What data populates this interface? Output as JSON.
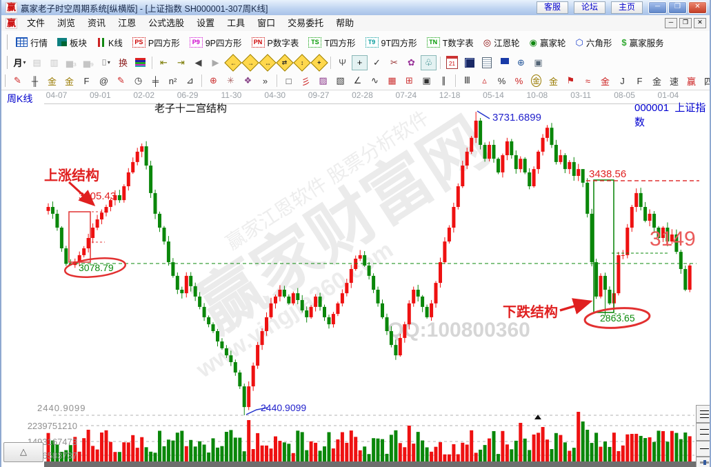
{
  "window": {
    "title": "赢家老子时空周期系统[纵横版] - [上证指数 SH000001-307周K线]",
    "title_buttons": [
      {
        "label": "客服",
        "name": "customer-service-button"
      },
      {
        "label": "论坛",
        "name": "forum-button"
      },
      {
        "label": "主页",
        "name": "homepage-button"
      }
    ]
  },
  "menu": {
    "items": [
      {
        "label": "文件",
        "name": "menu-file"
      },
      {
        "label": "浏览",
        "name": "menu-browse"
      },
      {
        "label": "资讯",
        "name": "menu-news"
      },
      {
        "label": "江恩",
        "name": "menu-gann"
      },
      {
        "label": "公式选股",
        "name": "menu-formula-picker"
      },
      {
        "label": "设置",
        "name": "menu-settings"
      },
      {
        "label": "工具",
        "name": "menu-tools"
      },
      {
        "label": "窗口",
        "name": "menu-window"
      },
      {
        "label": "交易委托",
        "name": "menu-trade"
      },
      {
        "label": "帮助",
        "name": "menu-help"
      }
    ]
  },
  "toolbar_main": [
    {
      "label": "行情",
      "name": "quotes-button",
      "icon": "grid"
    },
    {
      "label": "板块",
      "name": "blocks-button",
      "icon": "blocks"
    },
    {
      "label": "K线",
      "name": "kline-button",
      "icon": "kline"
    },
    {
      "label": "P四方形",
      "name": "p-square-button",
      "icon": "badge",
      "badge": "PS",
      "color": "#cc0000"
    },
    {
      "label": "9P四方形",
      "name": "nine-p-square-button",
      "icon": "badge",
      "badge": "P9",
      "color": "#cc00cc"
    },
    {
      "label": "P数字表",
      "name": "p-number-table-button",
      "icon": "badge",
      "badge": "PN",
      "color": "#cc0000"
    },
    {
      "label": "T四方形",
      "name": "t-square-button",
      "icon": "badge",
      "badge": "TS",
      "color": "#009900"
    },
    {
      "label": "9T四方形",
      "name": "nine-t-square-button",
      "icon": "badge",
      "badge": "T9",
      "color": "#009999"
    },
    {
      "label": "T数字表",
      "name": "t-number-table-button",
      "icon": "badge",
      "badge": "TN",
      "color": "#009900"
    },
    {
      "label": "江恩轮",
      "name": "gann-wheel-button",
      "icon": "glyph",
      "glyph": "◎",
      "color": "#880000"
    },
    {
      "label": "赢家轮",
      "name": "winner-wheel-button",
      "icon": "glyph",
      "glyph": "◉",
      "color": "#118811"
    },
    {
      "label": "六角形",
      "name": "hexagon-button",
      "icon": "glyph",
      "glyph": "⬡",
      "color": "#2244cc"
    },
    {
      "label": "赢家服务",
      "name": "winner-service-button",
      "icon": "glyph",
      "glyph": "$",
      "color": "#33aa33"
    }
  ],
  "toolbar_tools": [
    {
      "name": "period-month-dropdown",
      "glyph": "月",
      "color": "#111",
      "dropdown": true,
      "bold": true
    },
    {
      "name": "pattern-view-icon",
      "glyph": "▤",
      "color": "#999",
      "disabled": true
    },
    {
      "name": "report-view-icon",
      "glyph": "▥",
      "color": "#999",
      "disabled": true
    },
    {
      "name": "chart3-view-icon",
      "glyph": "▅₃",
      "color": "#999",
      "disabled": true
    },
    {
      "name": "chart9-view-icon",
      "glyph": "▅₉",
      "color": "#999",
      "disabled": true
    },
    {
      "name": "candle-style-dropdown",
      "glyph": "⌷",
      "color": "#555",
      "dropdown": true
    },
    {
      "name": "exchange-icon",
      "glyph": "换",
      "color": "#8b1a1a"
    },
    {
      "name": "histogram-icon",
      "type": "hist"
    },
    {
      "type": "sep"
    },
    {
      "name": "first-bar-button",
      "glyph": "⇤",
      "color": "#7a7a00"
    },
    {
      "name": "last-bar-button",
      "glyph": "⇥",
      "color": "#7a7a00"
    },
    {
      "name": "prev-bar-button",
      "glyph": "◀",
      "color": "#444"
    },
    {
      "name": "next-bar-button",
      "glyph": "▶",
      "color": "#aaa"
    },
    {
      "name": "pan-left-button",
      "type": "diamond",
      "glyph": "←"
    },
    {
      "name": "pan-right-button",
      "type": "diamond",
      "glyph": "→"
    },
    {
      "name": "expand-horizontal-button",
      "type": "diamond",
      "glyph": "↔"
    },
    {
      "name": "compress-horizontal-button",
      "type": "diamond",
      "glyph": "⇄"
    },
    {
      "name": "expand-vertical-button",
      "type": "diamond",
      "glyph": "↕"
    },
    {
      "name": "expand-all-button",
      "type": "diamond",
      "glyph": "+"
    },
    {
      "type": "sep"
    },
    {
      "name": "hand-tool-button",
      "glyph": "Ψ",
      "color": "#555"
    },
    {
      "name": "crosshair-tool-button",
      "glyph": "+",
      "color": "#111",
      "pressed": true
    },
    {
      "name": "line-node-tool-button",
      "glyph": "✓",
      "color": "#333"
    },
    {
      "name": "scissors-tool-button",
      "glyph": "✂",
      "color": "#993333"
    },
    {
      "name": "flower-tool-button",
      "glyph": "✿",
      "color": "#993399"
    },
    {
      "name": "brain-tool-button",
      "glyph": "♧",
      "color": "#117777",
      "pressed": true
    },
    {
      "type": "sep"
    },
    {
      "name": "calendar-button",
      "type": "cal",
      "glyph": "21"
    },
    {
      "name": "calculator-button",
      "type": "calc"
    },
    {
      "name": "notepad-button",
      "type": "note"
    },
    {
      "name": "save-button",
      "type": "save"
    },
    {
      "name": "network-button",
      "glyph": "⊕",
      "color": "#225599"
    },
    {
      "name": "workstation-button",
      "glyph": "▣",
      "color": "#556677"
    }
  ],
  "toolbar_draw": [
    {
      "name": "red-brush-icon",
      "glyph": "✎",
      "color": "#cc2222"
    },
    {
      "name": "grid-hash-icon",
      "glyph": "╫",
      "color": "#333"
    },
    {
      "name": "gann-grid-gold-icon",
      "glyph": "金",
      "color": "#997a00"
    },
    {
      "name": "gann-grid-gold2-icon",
      "glyph": "金",
      "color": "#997a00"
    },
    {
      "name": "fibonacci-grid-icon",
      "glyph": "F",
      "color": "#333"
    },
    {
      "name": "spiral-grid-icon",
      "glyph": "@",
      "color": "#333"
    },
    {
      "name": "red-pencil-icon",
      "glyph": "✎",
      "color": "#cc2222"
    },
    {
      "name": "time-cycle-icon",
      "glyph": "◷",
      "color": "#333"
    },
    {
      "name": "hash-lines-icon",
      "glyph": "╪",
      "color": "#333"
    },
    {
      "name": "n-square-icon",
      "glyph": "n²",
      "color": "#333"
    },
    {
      "name": "ruler-triangle-icon",
      "glyph": "⊿",
      "color": "#333"
    },
    {
      "type": "sep"
    },
    {
      "name": "compass-target-icon",
      "glyph": "⊕",
      "color": "#cc3333"
    },
    {
      "name": "starburst-icon",
      "glyph": "✳",
      "color": "#aa6666"
    },
    {
      "name": "starburst-square-icon",
      "glyph": "❖",
      "color": "#884488"
    },
    {
      "name": "more-tools-button",
      "glyph": "»",
      "color": "#333"
    },
    {
      "type": "sep"
    },
    {
      "name": "rect-select-icon",
      "glyph": "□",
      "color": "#333"
    },
    {
      "name": "gann-fan-icon",
      "glyph": "彡",
      "color": "#cc2222"
    },
    {
      "name": "fan-box-icon",
      "glyph": "▨",
      "color": "#883388"
    },
    {
      "name": "fan-box2-icon",
      "glyph": "▧",
      "color": "#333"
    },
    {
      "name": "angle-lines-icon",
      "glyph": "∠",
      "color": "#333"
    },
    {
      "name": "wave-tool-icon",
      "glyph": "∿",
      "color": "#333"
    },
    {
      "name": "grid-table-icon",
      "glyph": "▦",
      "color": "#cc3333"
    },
    {
      "name": "grid-dots-icon",
      "glyph": "⊞",
      "color": "#cc3333"
    },
    {
      "name": "grid-box-icon",
      "glyph": "▣",
      "color": "#333"
    },
    {
      "name": "parallel-lines-icon",
      "glyph": "∥",
      "color": "#333"
    },
    {
      "type": "sep"
    },
    {
      "name": "bars-lines-icon",
      "glyph": "Ⅲ",
      "color": "#333"
    },
    {
      "name": "triangle-percent-icon",
      "glyph": "▵",
      "color": "#cc3333"
    },
    {
      "name": "percent-icon",
      "glyph": "%",
      "color": "#333"
    },
    {
      "name": "percent-lines-icon",
      "glyph": "%",
      "color": "#cc2222"
    },
    {
      "name": "gold-circle-icon",
      "glyph": "金",
      "color": "#997a00",
      "circle": true
    },
    {
      "name": "gold-lines-icon",
      "glyph": "金",
      "color": "#997a00"
    },
    {
      "name": "flag-pen-icon",
      "glyph": "⚑",
      "color": "#cc2222"
    },
    {
      "name": "wave-lines-icon",
      "glyph": "≈",
      "color": "#cc2222"
    },
    {
      "name": "gold-red-icon",
      "glyph": "金",
      "color": "#cc2222"
    },
    {
      "name": "j-line-icon",
      "glyph": "J",
      "color": "#333"
    },
    {
      "name": "f-line-icon",
      "glyph": "F",
      "color": "#333"
    },
    {
      "name": "gold-angle-icon",
      "glyph": "金",
      "color": "#333"
    },
    {
      "name": "speed-line-icon",
      "glyph": "速",
      "color": "#333"
    },
    {
      "name": "winner-line-icon",
      "glyph": "赢",
      "color": "#cc2222"
    },
    {
      "name": "si-line-icon",
      "glyph": "四",
      "color": "#333"
    },
    {
      "type": "sep"
    },
    {
      "name": "grid-yellow-icon",
      "glyph": "⊞",
      "color": "#2244cc",
      "bg": "#ffe87a"
    },
    {
      "name": "mini-chart-icon",
      "glyph": "↗",
      "color": "#cc3333"
    },
    {
      "name": "yinyang-icon",
      "glyph": "☯",
      "color": "#cc2222",
      "pressed": true
    },
    {
      "name": "infinity-icon",
      "glyph": "∞",
      "color": "#cc2222"
    }
  ],
  "chart_header": {
    "period_label": "周K线",
    "structure_label": "老子十二宫结构",
    "symbol_code": "000001",
    "symbol_name": "上证指数",
    "dates": [
      "04-07",
      "09-01",
      "02-02",
      "06-29",
      "11-30",
      "04-30",
      "09-27",
      "02-28",
      "07-24",
      "12-18",
      "05-14",
      "10-08",
      "03-11",
      "08-05",
      "01-04"
    ]
  },
  "chart_data": {
    "type": "candlestick",
    "symbol": "SH000001",
    "name": "上证指数",
    "period": "周K线",
    "bar_count_label": "307",
    "open_first": 3310,
    "closes": [
      3327,
      3298,
      3239,
      3151,
      3085,
      3080,
      3095,
      3122,
      3151,
      3195,
      3239,
      3274,
      3303,
      3327,
      3356,
      3377,
      3356,
      3415,
      3474,
      3518,
      3562,
      3585,
      3503,
      3386,
      3298,
      3239,
      3180,
      3092,
      3034,
      2975,
      2960,
      3034,
      2990,
      2946,
      2902,
      2858,
      2828,
      2799,
      2755,
      2726,
      2696,
      2667,
      2623,
      2564,
      2476,
      2564,
      2652,
      2740,
      2799,
      2858,
      2917,
      2946,
      2975,
      2946,
      2917,
      2960,
      2931,
      2887,
      2858,
      2902,
      2946,
      2902,
      2858,
      2828,
      2872,
      2917,
      2960,
      3004,
      3063,
      3107,
      3122,
      3078,
      3034,
      2975,
      2917,
      2858,
      2799,
      2740,
      2696,
      2770,
      2828,
      2917,
      2975,
      2946,
      2902,
      2858,
      2917,
      3004,
      3092,
      3180,
      3239,
      3327,
      3415,
      3503,
      3562,
      3621,
      3694,
      3591,
      3532,
      3591,
      3532,
      3474,
      3547,
      3606,
      3547,
      3488,
      3532,
      3474,
      3415,
      3488,
      3562,
      3621,
      3664,
      3591,
      3518,
      3547,
      3488,
      3518,
      3459,
      3488,
      3430,
      3298,
      3092,
      2946,
      3034,
      2975,
      2917,
      2960,
      3122,
      3122,
      3239,
      3327,
      3386,
      3327,
      3268,
      3298,
      3239,
      3195,
      3239,
      3180,
      3210,
      3136,
      3063,
      2975,
      3078
    ],
    "key_points": [
      {
        "index": 5,
        "type": "low",
        "value": 3078.79
      },
      {
        "index": 44,
        "type": "low",
        "value": 2440.9099
      },
      {
        "index": 96,
        "type": "high",
        "value": 3731.6899
      },
      {
        "index": 120,
        "type": "high",
        "value": 3438.56
      },
      {
        "index": 125,
        "type": "low",
        "value": 2863.65
      }
    ],
    "labels": {
      "rise_structure": "上涨结构",
      "fall_structure": "下跌结构",
      "rise_high": "3305.43",
      "rise_low": "3078.79",
      "peak_high": "3731.6899",
      "fall_high": "3438.56",
      "support_level": "3149",
      "fall_low": "2863.65",
      "major_low": "2440.9099",
      "major_low_axis": "2440.9099"
    },
    "volume_axis": [
      "2239751210",
      "1493167473",
      "746583737"
    ]
  },
  "watermarks": {
    "brand": "赢家财富网",
    "line1": "赢家江恩软件 股票分析软件",
    "url": "www.yingjia360.com",
    "qq": "QQ:100800360"
  },
  "controls": {
    "expand_glyph": "△"
  },
  "colors": {
    "up": "#ee1111",
    "down": "#0a870a",
    "annotation_red": "#e02020",
    "annotation_green": "#0a8a0a",
    "annotation_blue": "#2222cc"
  }
}
